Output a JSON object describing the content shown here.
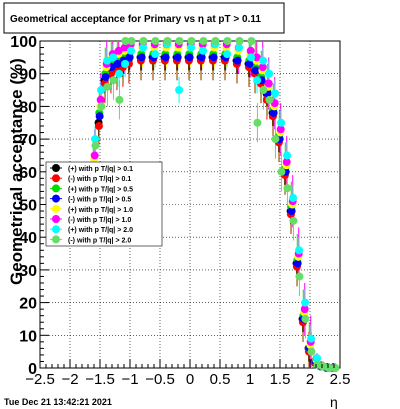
{
  "title": "Geometrical acceptance for Primary vs  η at pT > 0.11",
  "timestamp": "Tue Dec 21 13:42:21 2021",
  "chart_data": {
    "type": "scatter",
    "xlabel": "η",
    "ylabel": "Geometrical acceptance (%)",
    "xlim": [
      -2.5,
      2.5
    ],
    "ylim": [
      0,
      100
    ],
    "grid": true,
    "legend_placement": "middle-left",
    "xticks": [
      "−2.5",
      "−2",
      "−1.5",
      "−1",
      "−0.5",
      "0",
      "0.5",
      "1",
      "1.5",
      "2",
      "2.5"
    ],
    "yticks": [
      "0",
      "10",
      "20",
      "30",
      "40",
      "50",
      "60",
      "70",
      "80",
      "90",
      "100"
    ],
    "eta_grid": [
      -1.6,
      -1.5,
      -1.4,
      -1.3,
      -1.2,
      -1.1,
      -1.0,
      -0.8,
      -0.6,
      -0.4,
      -0.2,
      0.0,
      0.2,
      0.4,
      0.6,
      0.8,
      1.0,
      1.1,
      1.2,
      1.3,
      1.4,
      1.5,
      1.6,
      1.7,
      1.8,
      1.9,
      2.0,
      2.1,
      2.2,
      2.3,
      2.4
    ],
    "series": [
      {
        "name": "(+) with p T/|q| > 0.1",
        "color": "#000000",
        "values": [
          60,
          75,
          88,
          91,
          92,
          93,
          94,
          95,
          95,
          95,
          95,
          95,
          95,
          95,
          95,
          94,
          93,
          91,
          88,
          84,
          78,
          70,
          60,
          48,
          32,
          15,
          6,
          2,
          0.5,
          0,
          0
        ]
      },
      {
        "name": "(-) with p T/|q| > 0.1",
        "color": "#ff0000",
        "values": [
          58,
          74,
          87,
          90,
          91,
          92,
          93,
          94,
          94,
          94,
          94,
          94,
          94,
          94,
          94,
          93,
          92,
          90,
          87,
          82,
          77,
          69,
          59,
          47,
          31,
          14,
          5,
          1.5,
          0.5,
          0,
          0
        ]
      },
      {
        "name": "(+) with p T/|q| > 0.5",
        "color": "#00dd00",
        "values": [
          62,
          78,
          90,
          93,
          94,
          95,
          96,
          96,
          96,
          96,
          96,
          96,
          96,
          96,
          96,
          95,
          94,
          92,
          89,
          85,
          79,
          71,
          61,
          49,
          33,
          16,
          6,
          2,
          0.5,
          0,
          0
        ]
      },
      {
        "name": "(-) with p T/|q| > 0.5",
        "color": "#0000ff",
        "values": [
          61,
          77,
          89,
          92,
          93,
          94,
          95,
          95,
          95,
          95,
          95,
          95,
          95,
          95,
          95,
          94,
          93,
          91,
          88,
          84,
          78,
          70,
          60,
          48,
          32,
          15,
          6,
          2,
          0.5,
          0,
          0
        ]
      },
      {
        "name": "(+) with p T/|q| > 1.0",
        "color": "#ffff00",
        "values": [
          64,
          80,
          92,
          95,
          96,
          97,
          98,
          98,
          98,
          98,
          98,
          98,
          98,
          98,
          98,
          97,
          96,
          94,
          91,
          86,
          80,
          72,
          62,
          50,
          34,
          17,
          7,
          2.5,
          0.5,
          0,
          0
        ]
      },
      {
        "name": "(-) with p T/|q| > 1.0",
        "color": "#ff00ff",
        "values": [
          65,
          82,
          93,
          96,
          97,
          98,
          99,
          99,
          99,
          99,
          99,
          99,
          99,
          99,
          99,
          98,
          97,
          95,
          92,
          87,
          81,
          73,
          63,
          51,
          35,
          18,
          8,
          3,
          0.5,
          0,
          0
        ]
      },
      {
        "name": "(+) with p T/|q| > 2.0",
        "color": "#00ffff",
        "values": [
          70,
          85,
          94,
          95,
          90,
          93,
          97,
          98,
          96,
          99,
          85,
          98,
          97,
          99,
          96,
          98,
          95,
          88,
          94,
          90,
          84,
          75,
          65,
          52,
          36,
          20,
          9,
          3,
          0.5,
          0,
          0
        ]
      },
      {
        "name": "(-) with p T/|q| > 2.0",
        "color": "#66dd66",
        "values": [
          68,
          80,
          86,
          88,
          82,
          100,
          100,
          100,
          100,
          100,
          100,
          100,
          100,
          100,
          100,
          100,
          100,
          75,
          85,
          82,
          70,
          60,
          55,
          45,
          28,
          15,
          5,
          1,
          0.5,
          0,
          0
        ]
      }
    ]
  }
}
